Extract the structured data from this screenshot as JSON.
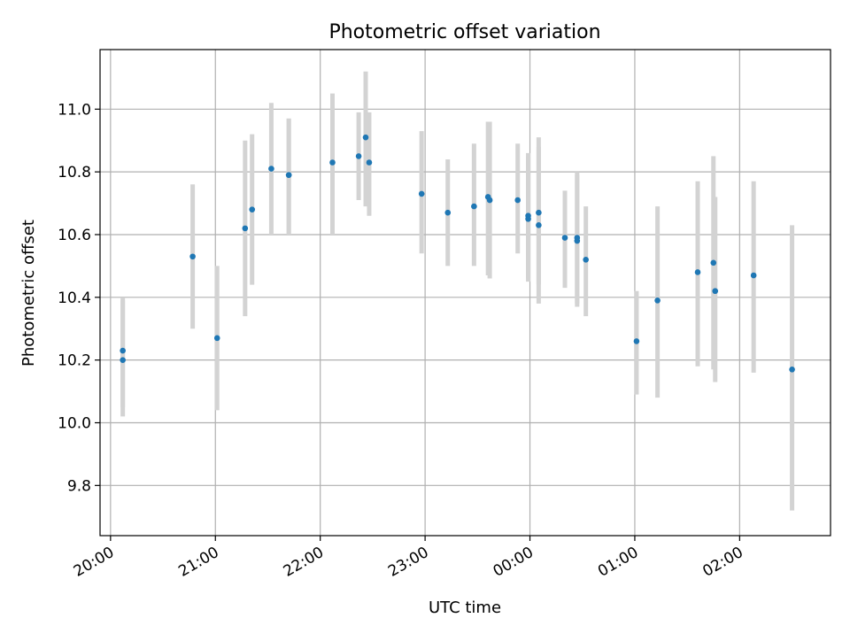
{
  "chart_data": {
    "type": "scatter",
    "title": "Photometric offset variation",
    "xlabel": "UTC time",
    "ylabel": "Photometric offset",
    "x_axis": "UTC time of day (HH:MM), night spanning midnight",
    "xlim": [
      "19:54",
      "02:52"
    ],
    "ylim": [
      9.64,
      11.19
    ],
    "grid": true,
    "legend": "none",
    "x_ticks": [
      "20:00",
      "21:00",
      "22:00",
      "23:00",
      "00:00",
      "01:00",
      "02:00"
    ],
    "y_ticks": [
      "9.8",
      "10.0",
      "10.2",
      "10.4",
      "10.6",
      "10.8",
      "11.0"
    ],
    "colors": {
      "point": "#1f77b4",
      "errorbar": "#d3d3d3",
      "grid": "#b0b0b0"
    },
    "points": [
      {
        "t": "20:07",
        "y": 10.23,
        "lo": 10.05,
        "hi": 10.4
      },
      {
        "t": "20:07",
        "y": 10.2,
        "lo": 10.02,
        "hi": 10.39
      },
      {
        "t": "20:47",
        "y": 10.53,
        "lo": 10.3,
        "hi": 10.76
      },
      {
        "t": "21:01",
        "y": 10.27,
        "lo": 10.04,
        "hi": 10.5
      },
      {
        "t": "21:17",
        "y": 10.62,
        "lo": 10.34,
        "hi": 10.9
      },
      {
        "t": "21:21",
        "y": 10.68,
        "lo": 10.44,
        "hi": 10.92
      },
      {
        "t": "21:32",
        "y": 10.81,
        "lo": 10.6,
        "hi": 11.02
      },
      {
        "t": "21:42",
        "y": 10.79,
        "lo": 10.6,
        "hi": 10.97
      },
      {
        "t": "21:42",
        "y": 10.79,
        "lo": 10.6,
        "hi": 10.97
      },
      {
        "t": "22:07",
        "y": 10.83,
        "lo": 10.6,
        "hi": 11.05
      },
      {
        "t": "22:22",
        "y": 10.85,
        "lo": 10.71,
        "hi": 10.99
      },
      {
        "t": "22:26",
        "y": 10.91,
        "lo": 10.69,
        "hi": 11.12
      },
      {
        "t": "22:28",
        "y": 10.83,
        "lo": 10.66,
        "hi": 10.99
      },
      {
        "t": "22:58",
        "y": 10.73,
        "lo": 10.54,
        "hi": 10.93
      },
      {
        "t": "23:13",
        "y": 10.67,
        "lo": 10.5,
        "hi": 10.84
      },
      {
        "t": "23:28",
        "y": 10.69,
        "lo": 10.5,
        "hi": 10.89
      },
      {
        "t": "23:36",
        "y": 10.72,
        "lo": 10.47,
        "hi": 10.96
      },
      {
        "t": "23:37",
        "y": 10.71,
        "lo": 10.46,
        "hi": 10.96
      },
      {
        "t": "23:53",
        "y": 10.71,
        "lo": 10.54,
        "hi": 10.89
      },
      {
        "t": "23:59",
        "y": 10.66,
        "lo": 10.46,
        "hi": 10.86
      },
      {
        "t": "23:59",
        "y": 10.65,
        "lo": 10.45,
        "hi": 10.85
      },
      {
        "t": "00:05",
        "y": 10.67,
        "lo": 10.44,
        "hi": 10.91
      },
      {
        "t": "00:05",
        "y": 10.63,
        "lo": 10.38,
        "hi": 10.88
      },
      {
        "t": "00:20",
        "y": 10.59,
        "lo": 10.43,
        "hi": 10.74
      },
      {
        "t": "00:27",
        "y": 10.58,
        "lo": 10.37,
        "hi": 10.8
      },
      {
        "t": "00:27",
        "y": 10.59,
        "lo": 10.38,
        "hi": 10.79
      },
      {
        "t": "00:32",
        "y": 10.52,
        "lo": 10.34,
        "hi": 10.69
      },
      {
        "t": "01:01",
        "y": 10.26,
        "lo": 10.09,
        "hi": 10.42
      },
      {
        "t": "01:13",
        "y": 10.39,
        "lo": 10.08,
        "hi": 10.69
      },
      {
        "t": "01:36",
        "y": 10.48,
        "lo": 10.18,
        "hi": 10.77
      },
      {
        "t": "01:45",
        "y": 10.51,
        "lo": 10.17,
        "hi": 10.85
      },
      {
        "t": "01:46",
        "y": 10.42,
        "lo": 10.13,
        "hi": 10.72
      },
      {
        "t": "02:08",
        "y": 10.47,
        "lo": 10.16,
        "hi": 10.77
      },
      {
        "t": "02:30",
        "y": 10.17,
        "lo": 9.72,
        "hi": 10.63
      }
    ]
  }
}
